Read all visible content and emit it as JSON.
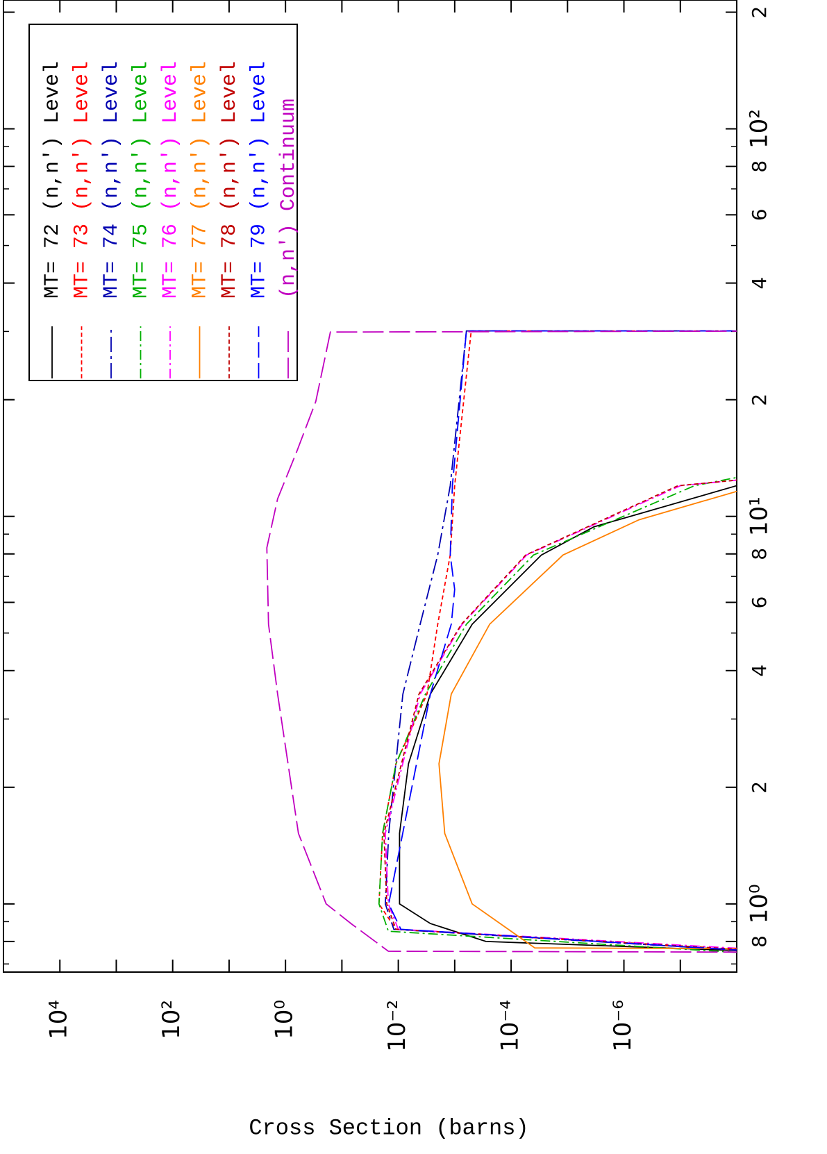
{
  "chart_data": {
    "type": "line",
    "x_scale": "log",
    "y_scale": "log",
    "y_label": "Cross Section (barns)",
    "xlim": [
      0.667,
      215
    ],
    "ylim": [
      1e-08,
      100000
    ],
    "xticks": [
      {
        "value": 0.8,
        "label": "8"
      },
      {
        "value": 1,
        "label": "10⁰"
      },
      {
        "value": 2,
        "label": "2"
      },
      {
        "value": 4,
        "label": "4"
      },
      {
        "value": 6,
        "label": "6"
      },
      {
        "value": 8,
        "label": "8"
      },
      {
        "value": 10,
        "label": "10¹"
      },
      {
        "value": 20,
        "label": "2"
      },
      {
        "value": 40,
        "label": "4"
      },
      {
        "value": 60,
        "label": "6"
      },
      {
        "value": 80,
        "label": "8"
      },
      {
        "value": 100,
        "label": "10²"
      },
      {
        "value": 200,
        "label": "2"
      }
    ],
    "xminorticks": [
      0.7,
      0.9,
      3,
      5,
      7,
      9,
      30,
      50,
      70,
      90
    ],
    "yticks": [
      {
        "value": 1e-06,
        "label": "10⁻⁶"
      },
      {
        "value": 0.0001,
        "label": "10⁻⁴"
      },
      {
        "value": 0.01,
        "label": "10⁻²"
      },
      {
        "value": 1,
        "label": "10⁰"
      },
      {
        "value": 100,
        "label": "10²"
      },
      {
        "value": 10000,
        "label": "10⁴"
      }
    ],
    "yminorticks": [
      1e-07,
      1e-05,
      0.001,
      0.1,
      10,
      1000
    ],
    "legend": "top-right",
    "series": [
      {
        "name": "MT= 72 (n,n') Level",
        "color": "#000000",
        "dash": "none",
        "x": [
          0.74,
          0.8,
          0.89,
          1.0,
          1.52,
          2.3,
          3.48,
          5.27,
          7.95,
          9.4,
          12.0
        ],
        "values": [
          1e-10,
          0.00028,
          0.0027,
          0.0095,
          0.0095,
          0.0066,
          0.0027,
          0.00049,
          2.9e-05,
          3.4e-06,
          1e-08
        ]
      },
      {
        "name": "MT= 73 (n,n') Level",
        "color": "#ff0000",
        "dash": "6,4",
        "x": [
          0.73,
          0.86,
          1.0,
          1.52,
          2.3,
          3.48,
          5.27,
          7.95,
          12.0,
          18.2,
          30.1,
          30.1
        ],
        "values": [
          1e-10,
          0.011,
          0.022,
          0.019,
          0.011,
          0.0031,
          0.002,
          0.0012,
          0.001,
          0.00074,
          0.00051,
          1e-10
        ]
      },
      {
        "name": "MT= 74 (n,n') Level",
        "color": "#0000b0",
        "dash": "22,6,4,6",
        "x": [
          0.73,
          0.86,
          1.0,
          1.52,
          3.48,
          5.27,
          7.95,
          12.0,
          30.1,
          30.1
        ],
        "values": [
          1e-10,
          0.012,
          0.017,
          0.0148,
          0.0083,
          0.0041,
          0.002,
          0.0012,
          0.00062,
          1e-10
        ]
      },
      {
        "name": "MT= 75 (n,n') Level",
        "color": "#00b000",
        "dash": "14,5,3,5",
        "x": [
          0.72,
          0.85,
          1.0,
          1.52,
          2.3,
          3.48,
          5.27,
          7.95,
          12.0,
          12.6
        ],
        "values": [
          1e-10,
          0.015,
          0.022,
          0.019,
          0.011,
          0.0033,
          0.00062,
          4e-05,
          5.6e-08,
          1e-08
        ]
      },
      {
        "name": "MT= 76 (n,n') Level",
        "color": "#ff00ff",
        "dash": "14,5,3,5",
        "x": [
          0.74,
          0.86,
          1.0,
          1.52,
          3.48,
          5.27,
          7.95,
          12.0,
          12.4
        ],
        "values": [
          1e-10,
          0.01,
          0.015,
          0.017,
          0.0041,
          0.00074,
          5.3e-05,
          1e-07,
          1e-08
        ]
      },
      {
        "name": "MT= 77 (n,n') Level",
        "color": "#ff8000",
        "dash": "none",
        "x": [
          0.765,
          0.77,
          1.0,
          1.52,
          2.3,
          3.48,
          5.27,
          7.95,
          9.8,
          11.6
        ],
        "values": [
          1e-10,
          3.8e-05,
          0.00049,
          0.0015,
          0.0019,
          0.00115,
          0.00024,
          1.2e-05,
          5.4e-07,
          1e-08
        ]
      },
      {
        "name": "MT= 78 (n,n') Level",
        "color": "#c00000",
        "dash": "6,4",
        "x": [
          0.735,
          0.86,
          1.0,
          1.52,
          3.48,
          5.27,
          7.95,
          12.0,
          12.4
        ],
        "values": [
          1e-10,
          0.011,
          0.016,
          0.018,
          0.0043,
          0.00076,
          5.5e-05,
          1.1e-07,
          1e-08
        ]
      },
      {
        "name": "MT= 79 (n,n') Level",
        "color": "#0000ff",
        "dash": "22,8",
        "x": [
          0.73,
          0.86,
          1.0,
          3.48,
          5.27,
          6.48,
          7.95,
          12.0,
          30.1,
          30.1
        ],
        "values": [
          1e-10,
          0.009,
          0.0148,
          0.0027,
          0.00115,
          0.001,
          0.0012,
          0.0011,
          0.00062,
          1e-10
        ]
      },
      {
        "name": "(n,n') Continuum",
        "color": "#c000c0",
        "dash": "30,8",
        "x": [
          0.75,
          0.755,
          0.89,
          1.0,
          1.52,
          3.48,
          5.27,
          8.3,
          11.1,
          14.8,
          19.8,
          29.9,
          30.1
        ],
        "values": [
          1e-10,
          0.015,
          0.069,
          0.19,
          0.59,
          1.38,
          2.0,
          2.14,
          1.38,
          0.62,
          0.29,
          0.16,
          1e-10
        ]
      }
    ]
  }
}
